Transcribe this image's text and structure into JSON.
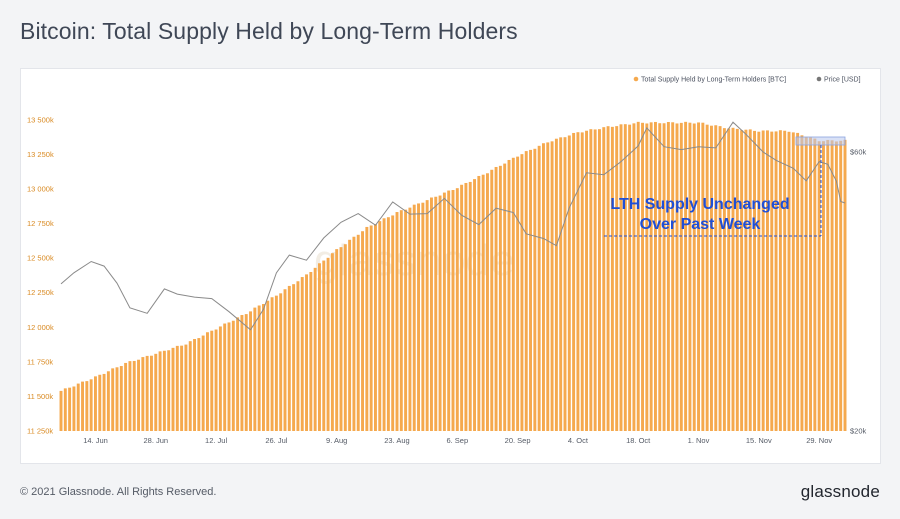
{
  "header": {
    "title": "Bitcoin: Total Supply Held by Long-Term Holders"
  },
  "footer": {
    "copyright": "© 2021 Glassnode. All Rights Reserved.",
    "brand": "glassnode"
  },
  "watermark": "glassnode",
  "annotation": {
    "line1": "LTH Supply Unchanged",
    "line2": "Over Past Week"
  },
  "colors": {
    "bar": "#f5a94e",
    "price": "#8a8a8a",
    "legend_price": "#777777",
    "annotation": "#1f4fd6",
    "highlight": "#b9c9ee"
  },
  "chart_data": {
    "type": "bar",
    "title": "Bitcoin: Total Supply Held by Long-Term Holders",
    "legend_placement": "top-right",
    "grid": false,
    "x_start": "2021-06-06",
    "x_end": "2021-12-05",
    "x_ticks": [
      "14. Jun",
      "28. Jun",
      "12. Jul",
      "26. Jul",
      "9. Aug",
      "23. Aug",
      "6. Sep",
      "20. Sep",
      "4. Oct",
      "18. Oct",
      "1. Nov",
      "15. Nov",
      "29. Nov"
    ],
    "y_left": {
      "ylim": [
        11250000,
        13550000
      ],
      "ticks": [
        "11 250k",
        "11 500k",
        "11 750k",
        "12 000k",
        "12 250k",
        "12 500k",
        "12 750k",
        "13 000k",
        "13 250k",
        "13 500k"
      ]
    },
    "y_right": {
      "label_ticks": [
        "$20k",
        "$60k"
      ],
      "scale": "log",
      "ylim": [
        20000,
        70000
      ]
    },
    "series": [
      {
        "name": "Total Supply Held by Long-Term Holders [BTC]",
        "type": "bar",
        "axis": "left",
        "points": [
          [
            "2021-06-06",
            11540000
          ],
          [
            "2021-06-14",
            11640000
          ],
          [
            "2021-06-21",
            11740000
          ],
          [
            "2021-06-28",
            11810000
          ],
          [
            "2021-07-05",
            11880000
          ],
          [
            "2021-07-12",
            11990000
          ],
          [
            "2021-07-19",
            12100000
          ],
          [
            "2021-07-26",
            12230000
          ],
          [
            "2021-08-02",
            12380000
          ],
          [
            "2021-08-09",
            12560000
          ],
          [
            "2021-08-16",
            12720000
          ],
          [
            "2021-08-23",
            12830000
          ],
          [
            "2021-08-30",
            12920000
          ],
          [
            "2021-09-06",
            13010000
          ],
          [
            "2021-09-13",
            13120000
          ],
          [
            "2021-09-20",
            13240000
          ],
          [
            "2021-09-27",
            13340000
          ],
          [
            "2021-10-04",
            13410000
          ],
          [
            "2021-10-11",
            13450000
          ],
          [
            "2021-10-18",
            13480000
          ],
          [
            "2021-10-25",
            13480000
          ],
          [
            "2021-11-01",
            13480000
          ],
          [
            "2021-11-08",
            13440000
          ],
          [
            "2021-11-15",
            13420000
          ],
          [
            "2021-11-22",
            13420000
          ],
          [
            "2021-11-29",
            13350000
          ],
          [
            "2021-12-05",
            13350000
          ]
        ]
      },
      {
        "name": "Price [USD]",
        "type": "line",
        "axis": "right",
        "points": [
          [
            "2021-06-06",
            35700
          ],
          [
            "2021-06-09",
            37300
          ],
          [
            "2021-06-13",
            39000
          ],
          [
            "2021-06-16",
            38300
          ],
          [
            "2021-06-19",
            35800
          ],
          [
            "2021-06-22",
            32500
          ],
          [
            "2021-06-26",
            31800
          ],
          [
            "2021-06-30",
            35000
          ],
          [
            "2021-07-03",
            34300
          ],
          [
            "2021-07-07",
            33900
          ],
          [
            "2021-07-11",
            33700
          ],
          [
            "2021-07-15",
            32000
          ],
          [
            "2021-07-20",
            29800
          ],
          [
            "2021-07-23",
            32300
          ],
          [
            "2021-07-26",
            37300
          ],
          [
            "2021-07-29",
            40000
          ],
          [
            "2021-08-02",
            39200
          ],
          [
            "2021-08-06",
            42800
          ],
          [
            "2021-08-10",
            45500
          ],
          [
            "2021-08-14",
            47100
          ],
          [
            "2021-08-18",
            45000
          ],
          [
            "2021-08-22",
            49300
          ],
          [
            "2021-08-26",
            47000
          ],
          [
            "2021-08-30",
            47100
          ],
          [
            "2021-09-03",
            50000
          ],
          [
            "2021-09-07",
            46800
          ],
          [
            "2021-09-11",
            45100
          ],
          [
            "2021-09-15",
            48100
          ],
          [
            "2021-09-19",
            47300
          ],
          [
            "2021-09-22",
            43500
          ],
          [
            "2021-09-26",
            42700
          ],
          [
            "2021-09-29",
            41500
          ],
          [
            "2021-10-02",
            48200
          ],
          [
            "2021-10-06",
            55300
          ],
          [
            "2021-10-10",
            54900
          ],
          [
            "2021-10-14",
            57800
          ],
          [
            "2021-10-18",
            61500
          ],
          [
            "2021-10-20",
            66000
          ],
          [
            "2021-10-24",
            61300
          ],
          [
            "2021-10-28",
            60600
          ],
          [
            "2021-11-01",
            61300
          ],
          [
            "2021-11-05",
            61000
          ],
          [
            "2021-11-09",
            67500
          ],
          [
            "2021-11-12",
            64400
          ],
          [
            "2021-11-16",
            60000
          ],
          [
            "2021-11-19",
            58100
          ],
          [
            "2021-11-23",
            56300
          ],
          [
            "2021-11-26",
            53600
          ],
          [
            "2021-11-29",
            57800
          ],
          [
            "2021-12-01",
            57200
          ],
          [
            "2021-12-03",
            53500
          ],
          [
            "2021-12-04",
            49400
          ],
          [
            "2021-12-05",
            49100
          ]
        ]
      }
    ]
  }
}
